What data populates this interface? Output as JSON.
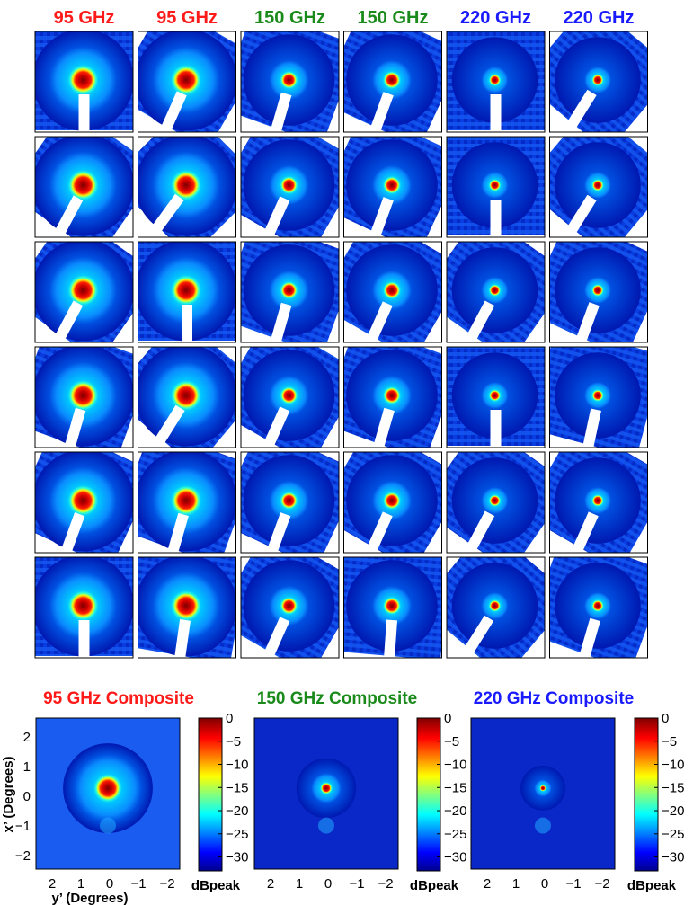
{
  "colors": {
    "freq_95": "#ff1a1a",
    "freq_150": "#1a8a1a",
    "freq_220": "#1a1aff",
    "frame": "#000000",
    "background": "#ffffff",
    "colormap": "jet"
  },
  "chart_data": [
    {
      "type": "heatmap",
      "title": "",
      "grid_rows": 6,
      "grid_cols": 6,
      "column_headers": [
        {
          "label": "95 GHz",
          "color": "#ff1a1a"
        },
        {
          "label": "95 GHz",
          "color": "#ff1a1a"
        },
        {
          "label": "150 GHz",
          "color": "#1a8a1a"
        },
        {
          "label": "150 GHz",
          "color": "#1a8a1a"
        },
        {
          "label": "220 GHz",
          "color": "#1a1aff"
        },
        {
          "label": "220 GHz",
          "color": "#1a1aff"
        }
      ],
      "beam_width_by_column": [
        0.55,
        0.55,
        0.36,
        0.36,
        0.26,
        0.26
      ],
      "mask_rotation_deg": [
        [
          0,
          30,
          20,
          25,
          0,
          40
        ],
        [
          35,
          45,
          30,
          25,
          0,
          40
        ],
        [
          35,
          0,
          20,
          30,
          35,
          25
        ],
        [
          20,
          40,
          30,
          20,
          0,
          15
        ],
        [
          25,
          20,
          25,
          30,
          35,
          30
        ],
        [
          0,
          10,
          30,
          5,
          40,
          20
        ]
      ],
      "colormap": "jet",
      "grid": false
    },
    {
      "type": "heatmap",
      "composites": [
        {
          "title": "95 GHz Composite",
          "color": "#ff1a1a",
          "beam_fwhm_deg": 0.55,
          "sidelobe_ring_deg": 1.2
        },
        {
          "title": "150 GHz Composite",
          "color": "#1a8a1a",
          "beam_fwhm_deg": 0.36,
          "sidelobe_ring_deg": 0.8
        },
        {
          "title": "220 GHz Composite",
          "color": "#1a1aff",
          "beam_fwhm_deg": 0.26,
          "sidelobe_ring_deg": 0.6
        }
      ],
      "xlabel": "y’ (Degrees)",
      "ylabel": "x’ (Degrees)",
      "x_ticks": [
        "2",
        "1",
        "0",
        "−1",
        "−2"
      ],
      "y_ticks": [
        "2",
        "1",
        "0",
        "−1",
        "−2"
      ],
      "xlim": [
        2.5,
        -2.5
      ],
      "ylim": [
        -2.5,
        2.5
      ],
      "colorbar": {
        "label": "dBpeak",
        "ticks": [
          "0",
          "−5",
          "−10",
          "−15",
          "−20",
          "−25",
          "−30"
        ],
        "range": [
          -33,
          0
        ]
      },
      "colormap": "jet"
    }
  ]
}
